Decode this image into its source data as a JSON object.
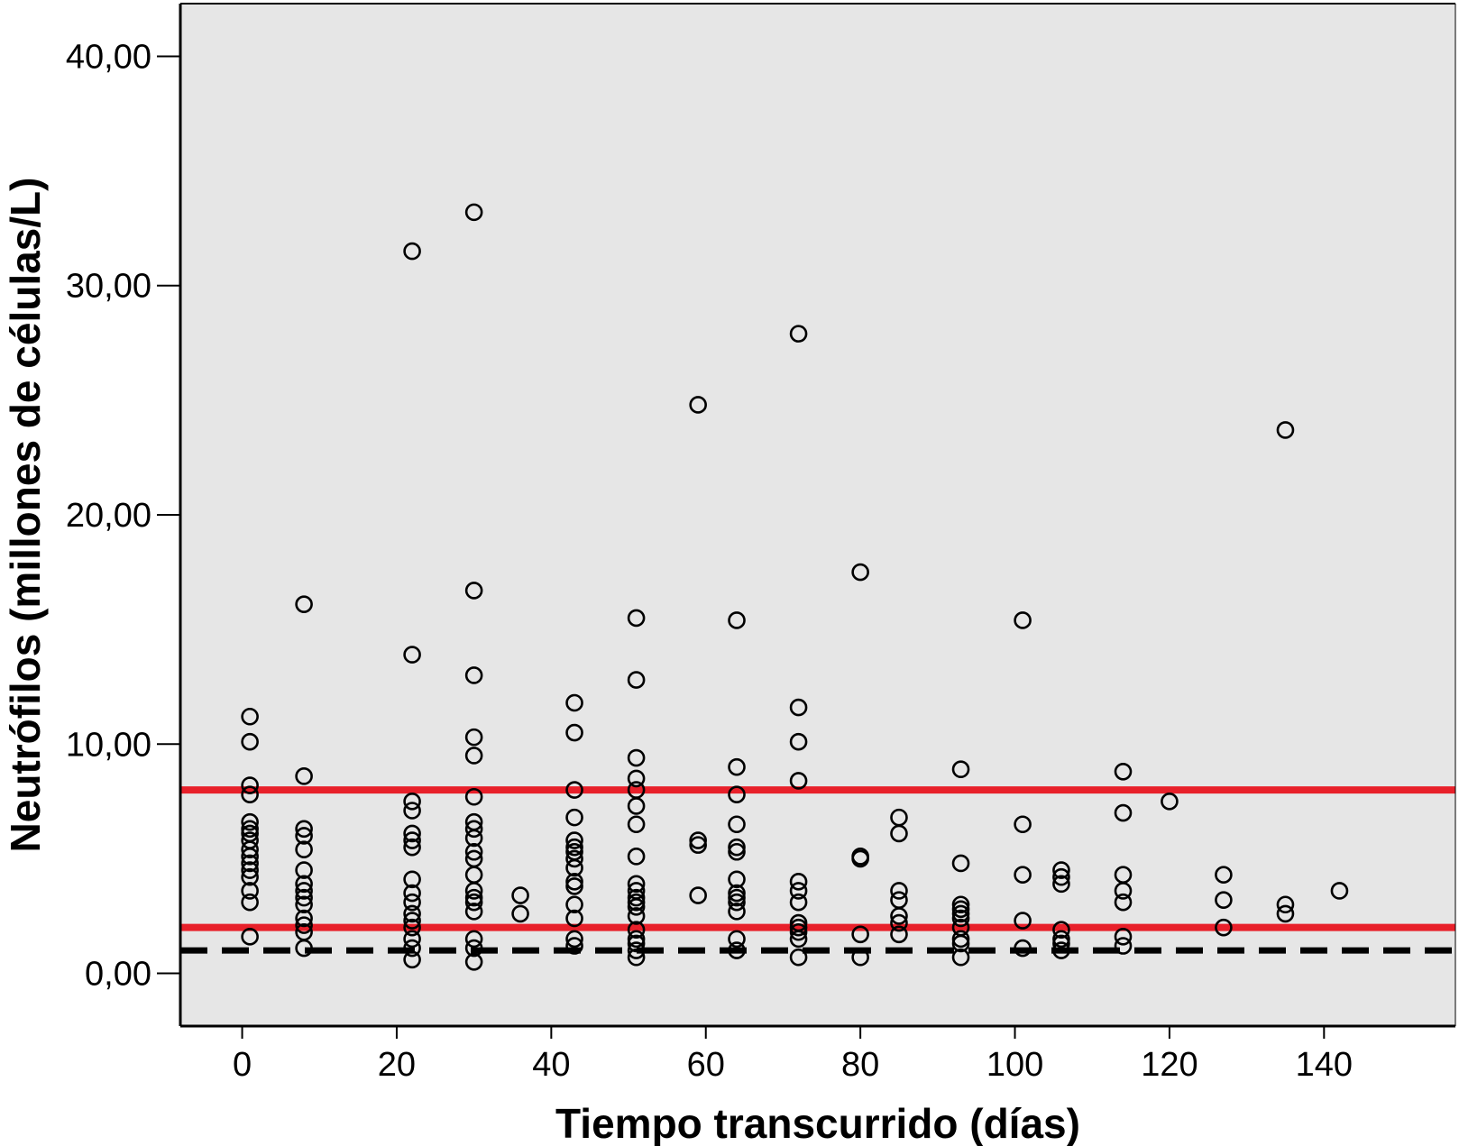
{
  "chart_data": {
    "type": "scatter",
    "xlabel": "Tiempo transcurrido (días)",
    "ylabel": "Neutrófilos (millones de células/L)",
    "xlim": [
      -8,
      157
    ],
    "ylim": [
      -2.3,
      42.3
    ],
    "x_ticks": [
      0,
      20,
      40,
      60,
      80,
      100,
      120,
      140
    ],
    "x_tick_labels": [
      "0",
      "20",
      "40",
      "60",
      "80",
      "100",
      "120",
      "140"
    ],
    "y_ticks": [
      0,
      10,
      20,
      30,
      40
    ],
    "y_tick_labels": [
      "0,00",
      "10,00",
      "20,00",
      "30,00",
      "40,00"
    ],
    "grid": false,
    "background": "#e6e6e6",
    "reference_lines": [
      {
        "y": 8.0,
        "style": "solid",
        "color": "#e8202a"
      },
      {
        "y": 2.0,
        "style": "solid",
        "color": "#e8202a"
      },
      {
        "y": 1.0,
        "style": "dashed",
        "color": "#000000"
      }
    ],
    "points": [
      [
        1,
        11.2
      ],
      [
        1,
        10.1
      ],
      [
        1,
        8.2
      ],
      [
        1,
        7.8
      ],
      [
        1,
        6.6
      ],
      [
        1,
        6.3
      ],
      [
        1,
        6.1
      ],
      [
        1,
        5.8
      ],
      [
        1,
        5.4
      ],
      [
        1,
        5.1
      ],
      [
        1,
        4.8
      ],
      [
        1,
        4.5
      ],
      [
        1,
        4.2
      ],
      [
        1,
        3.6
      ],
      [
        1,
        3.1
      ],
      [
        1,
        1.6
      ],
      [
        8,
        16.1
      ],
      [
        8,
        8.6
      ],
      [
        8,
        6.3
      ],
      [
        8,
        6.0
      ],
      [
        8,
        5.4
      ],
      [
        8,
        4.5
      ],
      [
        8,
        3.9
      ],
      [
        8,
        3.6
      ],
      [
        8,
        3.3
      ],
      [
        8,
        3.0
      ],
      [
        8,
        2.4
      ],
      [
        8,
        2.1
      ],
      [
        8,
        1.8
      ],
      [
        8,
        1.1
      ],
      [
        22,
        31.5
      ],
      [
        22,
        13.9
      ],
      [
        22,
        7.5
      ],
      [
        22,
        7.1
      ],
      [
        22,
        6.1
      ],
      [
        22,
        5.8
      ],
      [
        22,
        5.5
      ],
      [
        22,
        4.1
      ],
      [
        22,
        3.5
      ],
      [
        22,
        3.1
      ],
      [
        22,
        2.6
      ],
      [
        22,
        2.3
      ],
      [
        22,
        2.0
      ],
      [
        22,
        1.5
      ],
      [
        22,
        1.1
      ],
      [
        22,
        0.6
      ],
      [
        30,
        33.2
      ],
      [
        30,
        16.7
      ],
      [
        30,
        13.0
      ],
      [
        30,
        10.3
      ],
      [
        30,
        9.5
      ],
      [
        30,
        7.7
      ],
      [
        30,
        6.6
      ],
      [
        30,
        6.3
      ],
      [
        30,
        5.9
      ],
      [
        30,
        5.3
      ],
      [
        30,
        5.0
      ],
      [
        30,
        4.3
      ],
      [
        30,
        3.6
      ],
      [
        30,
        3.3
      ],
      [
        30,
        3.1
      ],
      [
        30,
        2.7
      ],
      [
        30,
        1.5
      ],
      [
        30,
        1.1
      ],
      [
        30,
        0.5
      ],
      [
        36,
        3.4
      ],
      [
        36,
        2.6
      ],
      [
        43,
        11.8
      ],
      [
        43,
        10.5
      ],
      [
        43,
        8.0
      ],
      [
        43,
        6.8
      ],
      [
        43,
        5.8
      ],
      [
        43,
        5.5
      ],
      [
        43,
        5.3
      ],
      [
        43,
        5.0
      ],
      [
        43,
        4.6
      ],
      [
        43,
        4.0
      ],
      [
        43,
        3.8
      ],
      [
        43,
        3.0
      ],
      [
        43,
        2.4
      ],
      [
        43,
        1.5
      ],
      [
        43,
        1.2
      ],
      [
        51,
        15.5
      ],
      [
        51,
        12.8
      ],
      [
        51,
        9.4
      ],
      [
        51,
        8.5
      ],
      [
        51,
        8.0
      ],
      [
        51,
        7.3
      ],
      [
        51,
        6.5
      ],
      [
        51,
        5.1
      ],
      [
        51,
        3.9
      ],
      [
        51,
        3.6
      ],
      [
        51,
        3.3
      ],
      [
        51,
        3.1
      ],
      [
        51,
        2.9
      ],
      [
        51,
        2.5
      ],
      [
        51,
        1.9
      ],
      [
        51,
        1.5
      ],
      [
        51,
        1.3
      ],
      [
        51,
        1.0
      ],
      [
        51,
        0.7
      ],
      [
        59,
        24.8
      ],
      [
        59,
        5.8
      ],
      [
        59,
        5.6
      ],
      [
        59,
        3.4
      ],
      [
        64,
        15.4
      ],
      [
        64,
        9.0
      ],
      [
        64,
        7.8
      ],
      [
        64,
        6.5
      ],
      [
        64,
        5.5
      ],
      [
        64,
        5.3
      ],
      [
        64,
        4.1
      ],
      [
        64,
        3.5
      ],
      [
        64,
        3.3
      ],
      [
        64,
        3.1
      ],
      [
        64,
        2.7
      ],
      [
        64,
        1.5
      ],
      [
        64,
        1.0
      ],
      [
        72,
        27.9
      ],
      [
        72,
        11.6
      ],
      [
        72,
        10.1
      ],
      [
        72,
        8.4
      ],
      [
        72,
        4.0
      ],
      [
        72,
        3.6
      ],
      [
        72,
        3.1
      ],
      [
        72,
        2.2
      ],
      [
        72,
        2.0
      ],
      [
        72,
        1.8
      ],
      [
        72,
        1.5
      ],
      [
        72,
        0.7
      ],
      [
        80,
        17.5
      ],
      [
        80,
        5.1
      ],
      [
        80,
        5.0
      ],
      [
        80,
        1.7
      ],
      [
        80,
        0.7
      ],
      [
        85,
        6.8
      ],
      [
        85,
        6.1
      ],
      [
        85,
        3.6
      ],
      [
        85,
        3.2
      ],
      [
        85,
        2.5
      ],
      [
        85,
        2.2
      ],
      [
        85,
        1.7
      ],
      [
        93,
        8.9
      ],
      [
        93,
        4.8
      ],
      [
        93,
        3.0
      ],
      [
        93,
        2.8
      ],
      [
        93,
        2.6
      ],
      [
        93,
        2.4
      ],
      [
        93,
        2.0
      ],
      [
        93,
        1.5
      ],
      [
        93,
        1.3
      ],
      [
        93,
        0.7
      ],
      [
        101,
        15.4
      ],
      [
        101,
        6.5
      ],
      [
        101,
        4.3
      ],
      [
        101,
        2.3
      ],
      [
        101,
        1.1
      ],
      [
        106,
        4.5
      ],
      [
        106,
        4.2
      ],
      [
        106,
        3.9
      ],
      [
        106,
        1.9
      ],
      [
        106,
        1.5
      ],
      [
        106,
        1.3
      ],
      [
        106,
        1.0
      ],
      [
        114,
        8.8
      ],
      [
        114,
        7.0
      ],
      [
        114,
        4.3
      ],
      [
        114,
        3.6
      ],
      [
        114,
        3.1
      ],
      [
        114,
        1.6
      ],
      [
        114,
        1.2
      ],
      [
        120,
        7.5
      ],
      [
        127,
        4.3
      ],
      [
        127,
        3.2
      ],
      [
        127,
        2.0
      ],
      [
        135,
        23.7
      ],
      [
        135,
        3.0
      ],
      [
        135,
        2.6
      ],
      [
        142,
        3.6
      ]
    ]
  }
}
